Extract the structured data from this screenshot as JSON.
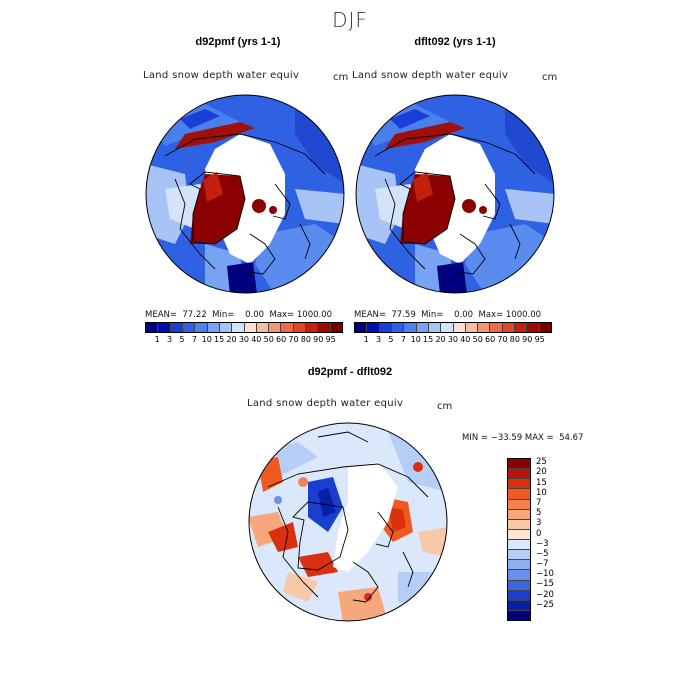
{
  "season": "DJF",
  "panels": [
    {
      "title": "d92pmf (yrs 1-1)",
      "variable": "Land snow depth water equiv",
      "units": "cm",
      "stats": "MEAN=  77.22  Min=    0.00  Max= 1000.00"
    },
    {
      "title": "dflt092 (yrs 1-1)",
      "variable": "Land snow depth water equiv",
      "units": "cm",
      "stats": "MEAN=  77.59  Min=    0.00  Max= 1000.00"
    }
  ],
  "diff_panel": {
    "title": "d92pmf - dflt092",
    "variable": "Land snow depth water equiv",
    "units": "cm",
    "stats": "MIN = −33.59 MAX =  54.67"
  },
  "chart_data": [
    {
      "type": "heatmap",
      "projection": "north polar stereographic",
      "title": "d92pmf (yrs 1-1)",
      "subtitle": "Land snow depth water equiv",
      "units": "cm",
      "mean": 77.22,
      "min": 0.0,
      "max": 1000.0,
      "colorbar_levels": [
        1,
        3,
        5,
        7,
        10,
        15,
        20,
        30,
        40,
        50,
        60,
        70,
        80,
        90,
        95
      ]
    },
    {
      "type": "heatmap",
      "projection": "north polar stereographic",
      "title": "dflt092 (yrs 1-1)",
      "subtitle": "Land snow depth water equiv",
      "units": "cm",
      "mean": 77.59,
      "min": 0.0,
      "max": 1000.0,
      "colorbar_levels": [
        1,
        3,
        5,
        7,
        10,
        15,
        20,
        30,
        40,
        50,
        60,
        70,
        80,
        90,
        95
      ]
    },
    {
      "type": "heatmap",
      "projection": "north polar stereographic",
      "title": "d92pmf - dflt092",
      "subtitle": "Land snow depth water equiv",
      "units": "cm",
      "min": -33.59,
      "max": 54.67,
      "colorbar_levels": [
        25,
        20,
        15,
        10,
        7,
        5,
        3,
        0,
        -3,
        -5,
        -7,
        -10,
        -15,
        -20,
        -25
      ]
    }
  ],
  "colorbars": {
    "abs_tick_labels": [
      "1",
      "3",
      "5",
      "7",
      "10",
      "15",
      "20",
      "30",
      "40",
      "50",
      "60",
      "70",
      "80",
      "90",
      "95"
    ],
    "abs_colors": [
      "#00007f",
      "#0010b0",
      "#1a3fd8",
      "#2f5fe6",
      "#4f80ee",
      "#78a2f2",
      "#a8c4f6",
      "#d4e3fa",
      "#fbe0d2",
      "#f9bda3",
      "#f59677",
      "#ee6a48",
      "#e34527",
      "#c42010",
      "#9c0a05",
      "#7a0000"
    ],
    "diff_tick_labels": [
      "25",
      "20",
      "15",
      "10",
      "7",
      "5",
      "3",
      "0",
      "−3",
      "−5",
      "−7",
      "−10",
      "−15",
      "−20",
      "−25"
    ],
    "diff_colors": [
      "#8b0000",
      "#b8150a",
      "#d9300f",
      "#ee5a22",
      "#f38451",
      "#f6a77c",
      "#f9c8a9",
      "#fde6d6",
      "#dbe8fb",
      "#b6cdf6",
      "#8faff1",
      "#6b8fec",
      "#3f66e2",
      "#1a3fce",
      "#0a1fa8",
      "#000080"
    ]
  }
}
